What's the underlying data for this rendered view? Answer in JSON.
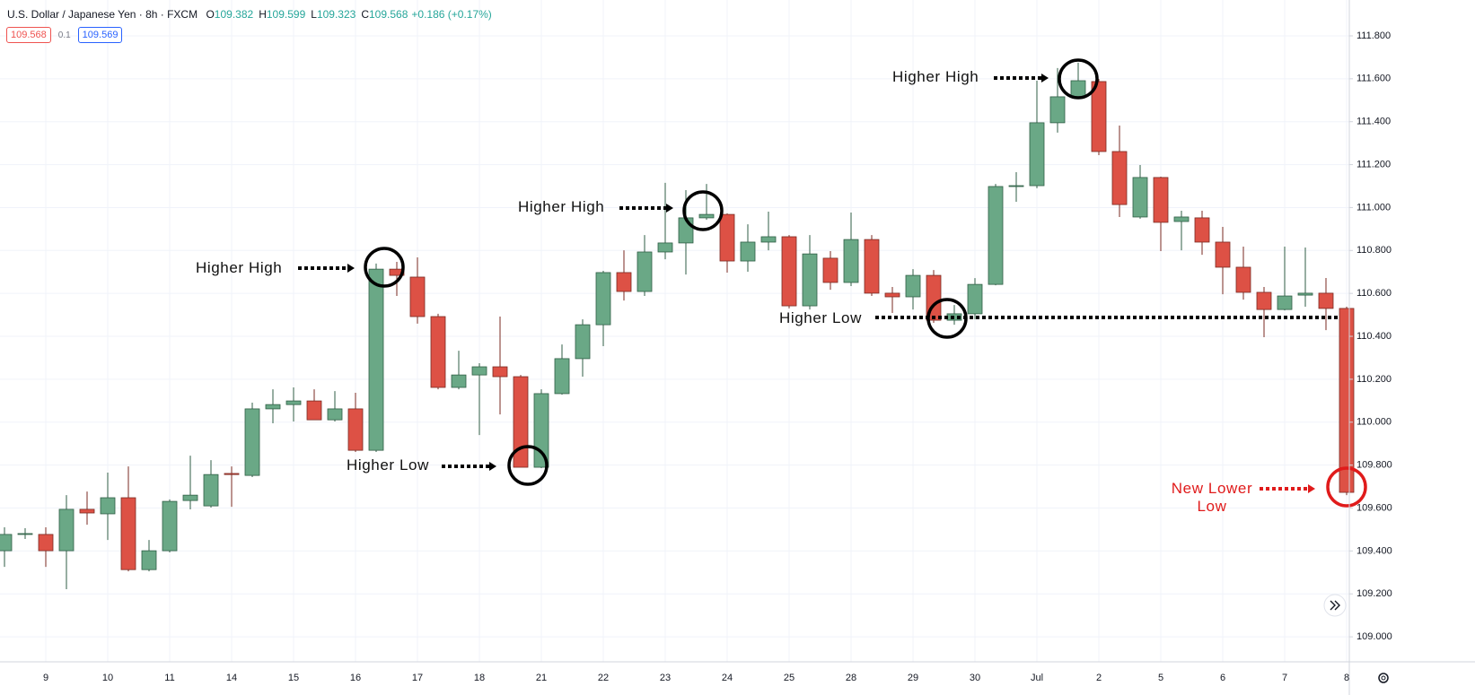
{
  "chart_data": {
    "type": "candlestick",
    "title": "U.S. Dollar / Japanese Yen · 8h · FXCM",
    "ohlc_header": [
      {
        "label": "O",
        "value": "109.382"
      },
      {
        "label": "H",
        "value": "109.599"
      },
      {
        "label": "L",
        "value": "109.323"
      },
      {
        "label": "C",
        "value": "109.568"
      },
      {
        "label": "",
        "value": "+0.186 (+0.17%)"
      }
    ],
    "price_buttons": {
      "sell": "109.568",
      "spread": "0.1",
      "buy": "109.569"
    },
    "up_color": "#6aa886",
    "down_color": "#dd5145",
    "grid": true,
    "categories": [
      null,
      null,
      "9",
      null,
      null,
      "10",
      null,
      null,
      "11",
      null,
      null,
      "14",
      null,
      null,
      "15",
      null,
      null,
      "16",
      null,
      null,
      "17",
      null,
      null,
      "18",
      null,
      null,
      "21",
      null,
      null,
      "22",
      null,
      null,
      "23",
      null,
      null,
      "24",
      null,
      null,
      "25",
      null,
      null,
      "28",
      null,
      null,
      "29",
      null,
      null,
      "30",
      null,
      null,
      "Jul",
      null,
      null,
      "2",
      null,
      null,
      "5",
      null,
      null,
      "6",
      null,
      null,
      "7",
      null,
      null,
      "8"
    ],
    "open": [
      109.401,
      109.477,
      109.477,
      109.401,
      109.594,
      109.573,
      109.648,
      109.313,
      109.401,
      109.635,
      109.61,
      109.761,
      109.752,
      110.062,
      110.082,
      110.099,
      110.011,
      110.062,
      109.869,
      110.713,
      110.676,
      110.492,
      110.162,
      110.22,
      110.258,
      110.212,
      109.79,
      110.133,
      110.296,
      110.454,
      110.697,
      110.609,
      110.793,
      110.835,
      110.952,
      110.968,
      110.751,
      110.839,
      110.864,
      110.542,
      110.764,
      110.651,
      110.851,
      110.601,
      110.584,
      110.684,
      110.475,
      110.505,
      110.642,
      111.098,
      111.102,
      111.395,
      111.516,
      111.587,
      111.261,
      110.956,
      111.14,
      110.935,
      110.952,
      110.839,
      110.722,
      110.605,
      110.525,
      110.592,
      110.601,
      110.53
    ],
    "high": [
      109.51,
      109.506,
      109.51,
      109.66,
      109.677,
      109.765,
      109.794,
      109.451,
      109.64,
      109.844,
      109.823,
      109.794,
      110.091,
      110.153,
      110.162,
      110.153,
      110.145,
      110.137,
      110.739,
      110.747,
      110.768,
      110.505,
      110.333,
      110.275,
      110.492,
      110.22,
      110.153,
      110.362,
      110.479,
      110.705,
      110.801,
      110.872,
      111.115,
      111.081,
      111.11,
      110.973,
      110.922,
      110.981,
      110.872,
      110.872,
      110.797,
      110.977,
      110.872,
      110.63,
      110.713,
      110.709,
      110.546,
      110.671,
      111.11,
      111.165,
      111.591,
      111.65,
      111.675,
      111.599,
      111.382,
      111.198,
      111.144,
      110.985,
      110.985,
      110.91,
      110.818,
      110.63,
      110.818,
      110.814,
      110.672,
      110.538
    ],
    "low": [
      109.326,
      109.456,
      109.326,
      109.222,
      109.522,
      109.451,
      109.305,
      109.305,
      109.393,
      109.594,
      109.602,
      109.606,
      109.744,
      109.995,
      110.003,
      110.011,
      110.003,
      109.861,
      109.861,
      110.588,
      110.459,
      110.153,
      110.153,
      109.94,
      110.036,
      109.79,
      109.786,
      110.128,
      110.212,
      110.354,
      110.567,
      110.588,
      110.759,
      110.688,
      110.943,
      110.697,
      110.701,
      110.801,
      110.53,
      110.525,
      110.617,
      110.634,
      110.588,
      110.509,
      110.525,
      110.463,
      110.454,
      110.479,
      110.638,
      111.027,
      111.09,
      111.349,
      111.516,
      111.244,
      110.956,
      110.948,
      110.797,
      110.801,
      110.78,
      110.596,
      110.571,
      110.396,
      110.521,
      110.538,
      110.429,
      109.66
    ],
    "close": [
      109.477,
      109.481,
      109.401,
      109.594,
      109.577,
      109.648,
      109.313,
      109.401,
      109.631,
      109.66,
      109.756,
      109.756,
      110.062,
      110.082,
      110.099,
      110.011,
      110.062,
      109.869,
      110.713,
      110.684,
      110.492,
      110.162,
      110.22,
      110.258,
      110.212,
      109.79,
      110.133,
      110.296,
      110.454,
      110.697,
      110.609,
      110.793,
      110.835,
      110.952,
      110.968,
      110.751,
      110.839,
      110.864,
      110.542,
      110.784,
      110.651,
      110.851,
      110.601,
      110.584,
      110.684,
      110.475,
      110.505,
      110.642,
      111.098,
      111.102,
      111.395,
      111.516,
      111.591,
      111.261,
      111.014,
      111.14,
      110.931,
      110.956,
      110.839,
      110.722,
      110.605,
      110.525,
      110.588,
      110.601,
      110.53,
      109.673
    ],
    "ylim": [
      108.896,
      111.967
    ],
    "yticks": [
      {
        "value": 109.0,
        "label": "109.000"
      },
      {
        "value": 109.2,
        "label": "109.200"
      },
      {
        "value": 109.4,
        "label": "109.400"
      },
      {
        "value": 109.6,
        "label": "109.600"
      },
      {
        "value": 109.8,
        "label": "109.800"
      },
      {
        "value": 110.0,
        "label": "110.000"
      },
      {
        "value": 110.2,
        "label": "110.200"
      },
      {
        "value": 110.4,
        "label": "110.400"
      },
      {
        "value": 110.6,
        "label": "110.600"
      },
      {
        "value": 110.8,
        "label": "110.800"
      },
      {
        "value": 111.0,
        "label": "111.000"
      },
      {
        "value": 111.2,
        "label": "111.200"
      },
      {
        "value": 111.4,
        "label": "111.400"
      },
      {
        "value": 111.6,
        "label": "111.600"
      },
      {
        "value": 111.8,
        "label": "111.800"
      }
    ],
    "annotations": [
      "Higher High",
      "Higher Low",
      "Higher High",
      "Higher High",
      "Higher Low",
      "New Lower Low"
    ]
  }
}
